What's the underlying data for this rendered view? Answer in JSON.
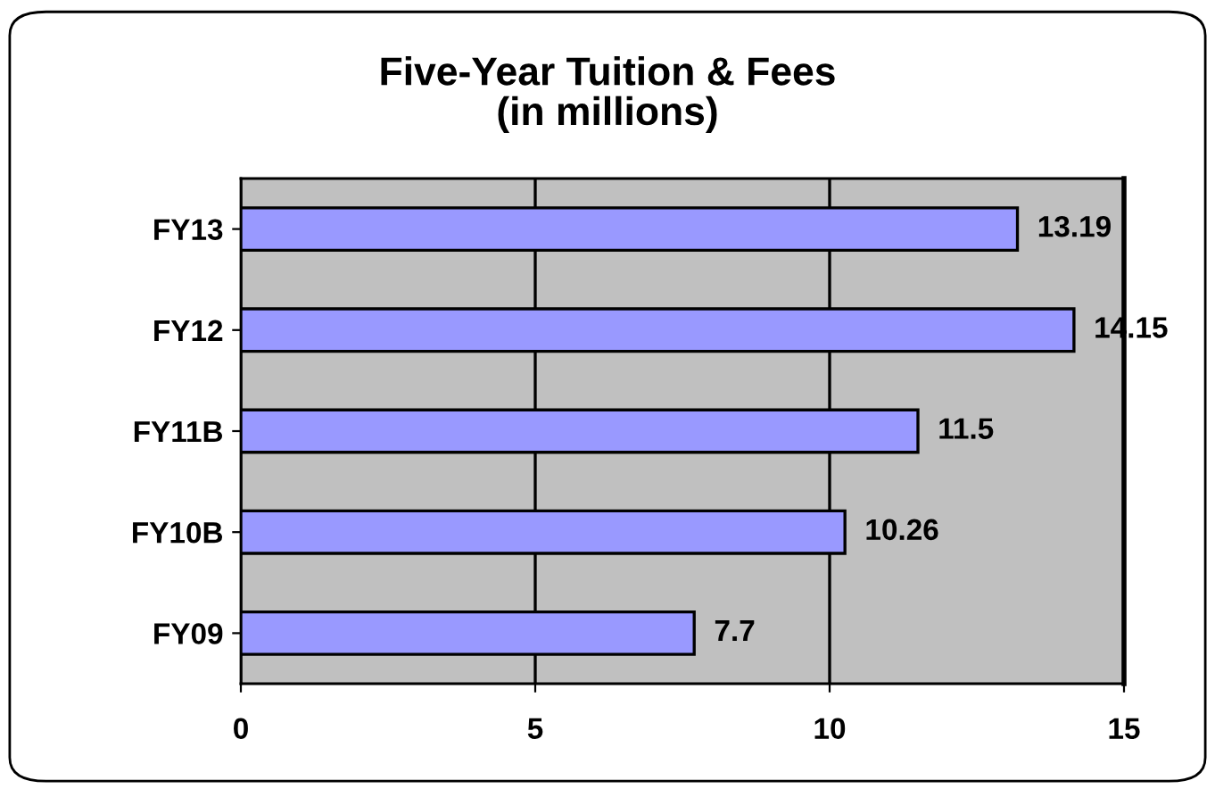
{
  "chart_data": {
    "type": "bar",
    "orientation": "horizontal",
    "title": "Five-Year Tuition & Fees\n(in millions)",
    "categories": [
      "FY13",
      "FY12",
      "FY11B",
      "FY10B",
      "FY09"
    ],
    "values": [
      13.19,
      14.15,
      11.5,
      10.26,
      7.7
    ],
    "color": "#9999ff",
    "xlim": [
      0,
      15
    ],
    "xticks": [
      0,
      5,
      10,
      15
    ],
    "grid": "x",
    "data_labels": true
  }
}
